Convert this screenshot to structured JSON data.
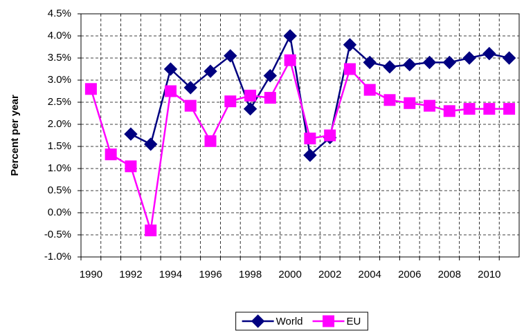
{
  "chart_data": {
    "type": "line",
    "y_label": "Percent per year",
    "categories": [
      "1990",
      null,
      "1992",
      null,
      "1994",
      null,
      "1996",
      null,
      "1998",
      null,
      "2000",
      null,
      "2002",
      null,
      "2004",
      null,
      "2006",
      null,
      "2008",
      null,
      "2010",
      null
    ],
    "series": [
      {
        "name": "World",
        "color": "#000080",
        "marker": "diamond",
        "values": [
          null,
          null,
          1.78,
          1.55,
          3.25,
          2.83,
          3.2,
          3.55,
          2.35,
          3.1,
          4.0,
          1.3,
          1.7,
          3.8,
          3.4,
          3.3,
          3.35,
          3.4,
          3.4,
          3.5,
          3.6,
          3.5
        ]
      },
      {
        "name": "EU",
        "color": "#ff00ff",
        "marker": "square",
        "values": [
          2.8,
          1.32,
          1.05,
          -0.4,
          2.75,
          2.42,
          1.62,
          2.52,
          2.65,
          2.6,
          3.45,
          1.68,
          1.75,
          3.25,
          2.78,
          2.55,
          2.48,
          2.42,
          2.3,
          2.35,
          2.35,
          2.35
        ]
      }
    ],
    "ylim": [
      -1.0,
      4.5
    ],
    "yticks": [
      {
        "value": -1.0,
        "label": "-1.0%"
      },
      {
        "value": -0.5,
        "label": "-0.5%"
      },
      {
        "value": 0.0,
        "label": "0.0%"
      },
      {
        "value": 0.5,
        "label": "0.5%"
      },
      {
        "value": 1.0,
        "label": "1.0%"
      },
      {
        "value": 1.5,
        "label": "1.5%"
      },
      {
        "value": 2.0,
        "label": "2.0%"
      },
      {
        "value": 2.5,
        "label": "2.5%"
      },
      {
        "value": 3.0,
        "label": "3.0%"
      },
      {
        "value": 3.5,
        "label": "3.5%"
      },
      {
        "value": 4.0,
        "label": "4.0%"
      },
      {
        "value": 4.5,
        "label": "4.5%"
      }
    ],
    "grid": true,
    "legend": "bottom"
  }
}
